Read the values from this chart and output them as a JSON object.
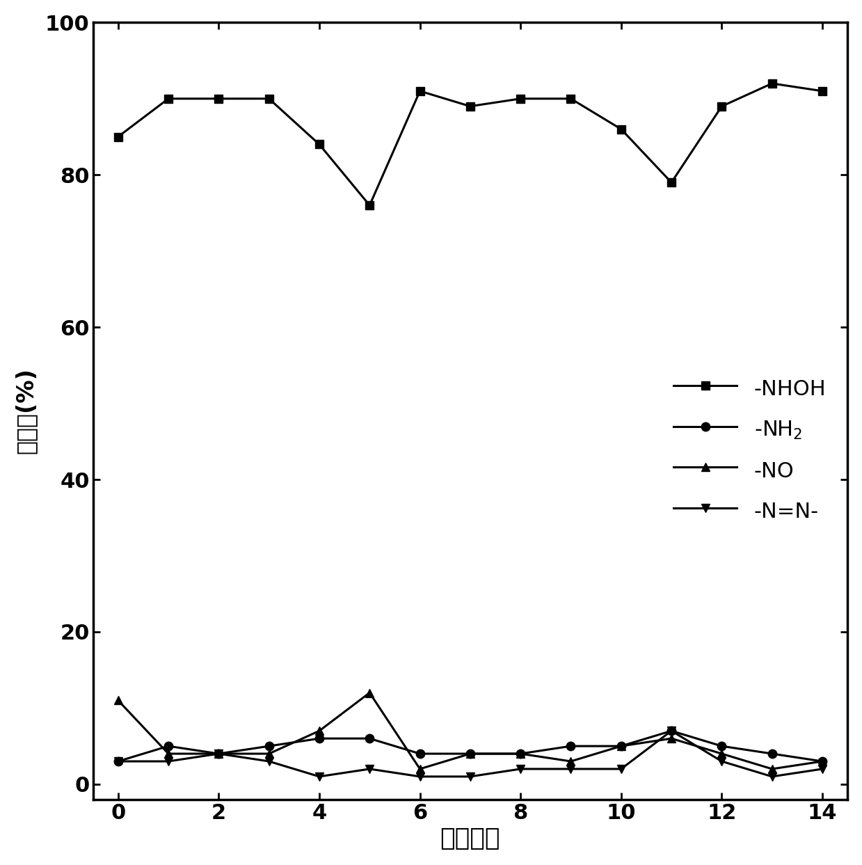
{
  "x": [
    0,
    1,
    2,
    3,
    4,
    5,
    6,
    7,
    8,
    9,
    10,
    11,
    12,
    13,
    14
  ],
  "nhoh": [
    85,
    90,
    90,
    90,
    84,
    76,
    91,
    89,
    90,
    90,
    86,
    79,
    89,
    92,
    91
  ],
  "nh2": [
    3,
    5,
    4,
    5,
    6,
    6,
    4,
    4,
    4,
    5,
    5,
    7,
    5,
    4,
    3
  ],
  "no": [
    11,
    4,
    4,
    4,
    7,
    12,
    2,
    4,
    4,
    3,
    5,
    6,
    4,
    2,
    3
  ],
  "nn": [
    3,
    3,
    4,
    3,
    1,
    2,
    1,
    1,
    2,
    2,
    2,
    7,
    3,
    1,
    2
  ],
  "xlabel": "套用次数",
  "ylabel": "选择性(%)",
  "legend_nhoh": "-NHOH",
  "legend_nh2": "-NH$_2$",
  "legend_no": "-NO",
  "legend_nn": "-N=N-",
  "xlim": [
    -0.5,
    14.5
  ],
  "ylim": [
    -2,
    100
  ],
  "yticks": [
    0,
    20,
    40,
    60,
    80,
    100
  ],
  "xticks": [
    0,
    2,
    4,
    6,
    8,
    10,
    12,
    14
  ],
  "line_color": "#000000",
  "bg_color": "#ffffff",
  "marker_nhoh": "s",
  "marker_nh2": "o",
  "marker_no": "^",
  "marker_nn": "v",
  "linewidth": 2.2,
  "markersize": 9,
  "xlabel_fontsize": 26,
  "ylabel_fontsize": 24,
  "tick_fontsize": 22,
  "legend_fontsize": 22
}
